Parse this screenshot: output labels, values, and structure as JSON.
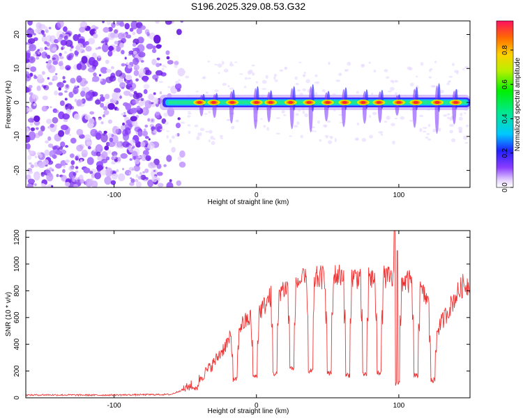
{
  "chart_data": [
    {
      "type": "heatmap",
      "title": "S196.2025.329.08.53.G32",
      "xlabel": "Height of straight line (km)",
      "ylabel": "Frequency (Hz)",
      "xlim": [
        -162,
        150
      ],
      "ylim": [
        -25,
        24
      ],
      "xticks": [
        -100,
        0,
        100
      ],
      "xtick_labels": [
        "-100",
        "0",
        "100"
      ],
      "yticks": [
        -20,
        -10,
        0,
        10,
        20
      ],
      "ytick_labels": [
        "-20",
        "-10",
        "0",
        "10",
        "20"
      ],
      "colorbar": {
        "label": "Normalized spectral amplitude",
        "range": [
          0,
          0.97
        ],
        "ticks": [
          0,
          0.2,
          0.4,
          0.6,
          0.8
        ],
        "tick_labels": [
          "0.0",
          "0.2",
          "0.4",
          "0.6",
          "0.8"
        ]
      },
      "description_values": {
        "noise_region_x": [
          -162,
          -52
        ],
        "signal_band_x": [
          -68,
          150
        ],
        "signal_band_center_freq": 0,
        "hotspots_x": [
          -40,
          -30,
          -17,
          0,
          10,
          24,
          37,
          50,
          62,
          75,
          86,
          100,
          112,
          127,
          140
        ]
      }
    },
    {
      "type": "line",
      "xlabel": "Height of straight line (km)",
      "ylabel": "SNR (10 * v/v)",
      "xlim": [
        -162,
        150
      ],
      "ylim": [
        0,
        1250
      ],
      "xticks": [
        -100,
        0,
        100
      ],
      "xtick_labels": [
        "-100",
        "0",
        "100"
      ],
      "yticks": [
        0,
        200,
        400,
        600,
        800,
        1000,
        1200
      ],
      "ytick_labels": [
        "0",
        "200",
        "400",
        "600",
        "800",
        "1000",
        "1200"
      ],
      "color": "#ee3333",
      "x": [
        -162,
        -150,
        -130,
        -110,
        -90,
        -70,
        -60,
        -52,
        -48,
        -45,
        -40,
        -35,
        -30,
        -25,
        -20,
        -15,
        -10,
        -5,
        0,
        5,
        10,
        15,
        20,
        25,
        30,
        35,
        40,
        45,
        50,
        55,
        60,
        65,
        70,
        75,
        80,
        85,
        90,
        95,
        100,
        105,
        110,
        115,
        120,
        125,
        130,
        135,
        140,
        145,
        150
      ],
      "y": [
        20,
        22,
        21,
        20,
        22,
        24,
        25,
        60,
        80,
        100,
        140,
        200,
        260,
        340,
        420,
        500,
        550,
        590,
        620,
        680,
        760,
        800,
        820,
        850,
        870,
        880,
        890,
        900,
        900,
        910,
        920,
        910,
        900,
        920,
        900,
        880,
        900,
        890,
        880,
        870,
        860,
        800,
        740,
        480,
        560,
        660,
        760,
        840,
        850
      ],
      "dips": [
        {
          "x": -43,
          "y": 50
        },
        {
          "x": -15,
          "y": 120
        },
        {
          "x": -1,
          "y": 140
        },
        {
          "x": 13,
          "y": 160
        },
        {
          "x": 25,
          "y": 200
        },
        {
          "x": 38,
          "y": 180
        },
        {
          "x": 51,
          "y": 160
        },
        {
          "x": 64,
          "y": 150
        },
        {
          "x": 76,
          "y": 150
        },
        {
          "x": 86,
          "y": 170
        },
        {
          "x": 99,
          "y": 90
        },
        {
          "x": 112,
          "y": 150
        },
        {
          "x": 124,
          "y": 110
        }
      ],
      "spikes": [
        {
          "x": 97,
          "y": 1250
        },
        {
          "x": 99,
          "y": 1100
        }
      ]
    }
  ]
}
